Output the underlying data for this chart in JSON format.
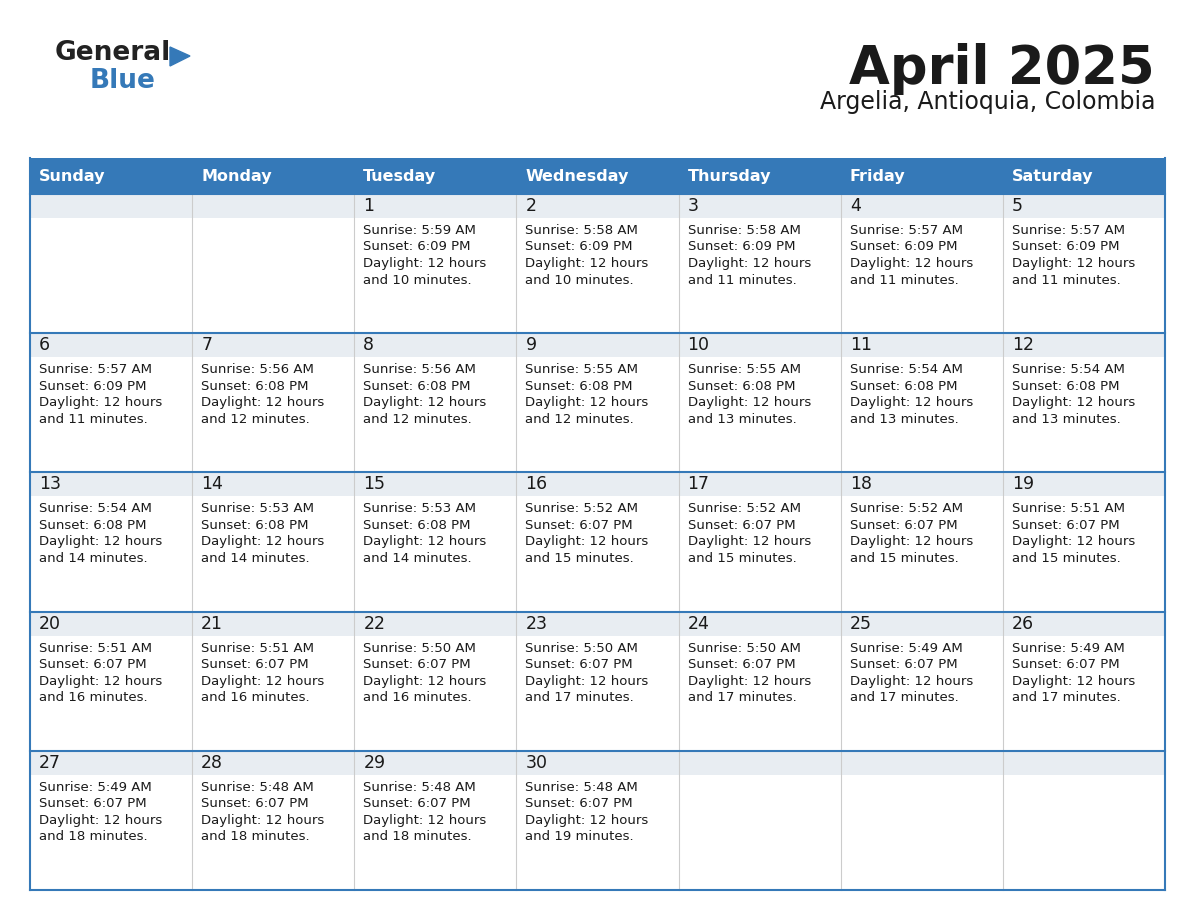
{
  "title": "April 2025",
  "subtitle": "Argelia, Antioquia, Colombia",
  "header_bg": "#3579b8",
  "header_text": "#ffffff",
  "row_num_bg": "#e8edf2",
  "row_text_bg": "#ffffff",
  "last_row_bg": "#e8edf2",
  "border_color": "#3579b8",
  "grid_color": "#cccccc",
  "text_color": "#1a1a1a",
  "days_of_week": [
    "Sunday",
    "Monday",
    "Tuesday",
    "Wednesday",
    "Thursday",
    "Friday",
    "Saturday"
  ],
  "weeks": [
    [
      {
        "day": "",
        "sunrise": "",
        "sunset": "",
        "daylight1": "",
        "daylight2": ""
      },
      {
        "day": "",
        "sunrise": "",
        "sunset": "",
        "daylight1": "",
        "daylight2": ""
      },
      {
        "day": "1",
        "sunrise": "5:59 AM",
        "sunset": "6:09 PM",
        "daylight1": "12 hours",
        "daylight2": "and 10 minutes."
      },
      {
        "day": "2",
        "sunrise": "5:58 AM",
        "sunset": "6:09 PM",
        "daylight1": "12 hours",
        "daylight2": "and 10 minutes."
      },
      {
        "day": "3",
        "sunrise": "5:58 AM",
        "sunset": "6:09 PM",
        "daylight1": "12 hours",
        "daylight2": "and 11 minutes."
      },
      {
        "day": "4",
        "sunrise": "5:57 AM",
        "sunset": "6:09 PM",
        "daylight1": "12 hours",
        "daylight2": "and 11 minutes."
      },
      {
        "day": "5",
        "sunrise": "5:57 AM",
        "sunset": "6:09 PM",
        "daylight1": "12 hours",
        "daylight2": "and 11 minutes."
      }
    ],
    [
      {
        "day": "6",
        "sunrise": "5:57 AM",
        "sunset": "6:09 PM",
        "daylight1": "12 hours",
        "daylight2": "and 11 minutes."
      },
      {
        "day": "7",
        "sunrise": "5:56 AM",
        "sunset": "6:08 PM",
        "daylight1": "12 hours",
        "daylight2": "and 12 minutes."
      },
      {
        "day": "8",
        "sunrise": "5:56 AM",
        "sunset": "6:08 PM",
        "daylight1": "12 hours",
        "daylight2": "and 12 minutes."
      },
      {
        "day": "9",
        "sunrise": "5:55 AM",
        "sunset": "6:08 PM",
        "daylight1": "12 hours",
        "daylight2": "and 12 minutes."
      },
      {
        "day": "10",
        "sunrise": "5:55 AM",
        "sunset": "6:08 PM",
        "daylight1": "12 hours",
        "daylight2": "and 13 minutes."
      },
      {
        "day": "11",
        "sunrise": "5:54 AM",
        "sunset": "6:08 PM",
        "daylight1": "12 hours",
        "daylight2": "and 13 minutes."
      },
      {
        "day": "12",
        "sunrise": "5:54 AM",
        "sunset": "6:08 PM",
        "daylight1": "12 hours",
        "daylight2": "and 13 minutes."
      }
    ],
    [
      {
        "day": "13",
        "sunrise": "5:54 AM",
        "sunset": "6:08 PM",
        "daylight1": "12 hours",
        "daylight2": "and 14 minutes."
      },
      {
        "day": "14",
        "sunrise": "5:53 AM",
        "sunset": "6:08 PM",
        "daylight1": "12 hours",
        "daylight2": "and 14 minutes."
      },
      {
        "day": "15",
        "sunrise": "5:53 AM",
        "sunset": "6:08 PM",
        "daylight1": "12 hours",
        "daylight2": "and 14 minutes."
      },
      {
        "day": "16",
        "sunrise": "5:52 AM",
        "sunset": "6:07 PM",
        "daylight1": "12 hours",
        "daylight2": "and 15 minutes."
      },
      {
        "day": "17",
        "sunrise": "5:52 AM",
        "sunset": "6:07 PM",
        "daylight1": "12 hours",
        "daylight2": "and 15 minutes."
      },
      {
        "day": "18",
        "sunrise": "5:52 AM",
        "sunset": "6:07 PM",
        "daylight1": "12 hours",
        "daylight2": "and 15 minutes."
      },
      {
        "day": "19",
        "sunrise": "5:51 AM",
        "sunset": "6:07 PM",
        "daylight1": "12 hours",
        "daylight2": "and 15 minutes."
      }
    ],
    [
      {
        "day": "20",
        "sunrise": "5:51 AM",
        "sunset": "6:07 PM",
        "daylight1": "12 hours",
        "daylight2": "and 16 minutes."
      },
      {
        "day": "21",
        "sunrise": "5:51 AM",
        "sunset": "6:07 PM",
        "daylight1": "12 hours",
        "daylight2": "and 16 minutes."
      },
      {
        "day": "22",
        "sunrise": "5:50 AM",
        "sunset": "6:07 PM",
        "daylight1": "12 hours",
        "daylight2": "and 16 minutes."
      },
      {
        "day": "23",
        "sunrise": "5:50 AM",
        "sunset": "6:07 PM",
        "daylight1": "12 hours",
        "daylight2": "and 17 minutes."
      },
      {
        "day": "24",
        "sunrise": "5:50 AM",
        "sunset": "6:07 PM",
        "daylight1": "12 hours",
        "daylight2": "and 17 minutes."
      },
      {
        "day": "25",
        "sunrise": "5:49 AM",
        "sunset": "6:07 PM",
        "daylight1": "12 hours",
        "daylight2": "and 17 minutes."
      },
      {
        "day": "26",
        "sunrise": "5:49 AM",
        "sunset": "6:07 PM",
        "daylight1": "12 hours",
        "daylight2": "and 17 minutes."
      }
    ],
    [
      {
        "day": "27",
        "sunrise": "5:49 AM",
        "sunset": "6:07 PM",
        "daylight1": "12 hours",
        "daylight2": "and 18 minutes."
      },
      {
        "day": "28",
        "sunrise": "5:48 AM",
        "sunset": "6:07 PM",
        "daylight1": "12 hours",
        "daylight2": "and 18 minutes."
      },
      {
        "day": "29",
        "sunrise": "5:48 AM",
        "sunset": "6:07 PM",
        "daylight1": "12 hours",
        "daylight2": "and 18 minutes."
      },
      {
        "day": "30",
        "sunrise": "5:48 AM",
        "sunset": "6:07 PM",
        "daylight1": "12 hours",
        "daylight2": "and 19 minutes."
      },
      {
        "day": "",
        "sunrise": "",
        "sunset": "",
        "daylight1": "",
        "daylight2": ""
      },
      {
        "day": "",
        "sunrise": "",
        "sunset": "",
        "daylight1": "",
        "daylight2": ""
      },
      {
        "day": "",
        "sunrise": "",
        "sunset": "",
        "daylight1": "",
        "daylight2": ""
      }
    ]
  ]
}
